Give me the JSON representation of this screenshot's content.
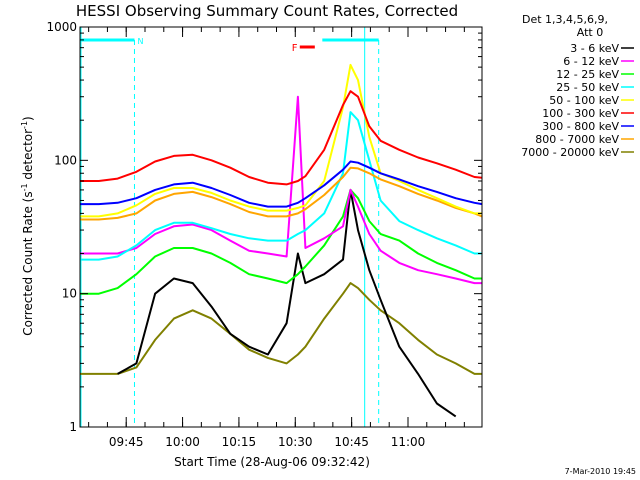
{
  "chart_data": {
    "type": "line",
    "title": "HESSI Observing Summary Count Rates, Corrected",
    "xlabel": "Start Time (28-Aug-06 09:32:42)",
    "ylabel": "Corrected Count Rate (s",
    "ylabel_sup1": "-1",
    "ylabel_mid": " detector",
    "ylabel_sup2": "-1",
    "ylabel_end": ")",
    "yscale": "log",
    "ylim": [
      1,
      1000
    ],
    "xlim_minutes": [
      0,
      107
    ],
    "x_start": "09:32:42",
    "xticks": [
      {
        "label": "09:45",
        "min": 12.3
      },
      {
        "label": "10:00",
        "min": 27.3
      },
      {
        "label": "10:15",
        "min": 42.3
      },
      {
        "label": "10:30",
        "min": 57.3
      },
      {
        "label": "10:45",
        "min": 72.3
      },
      {
        "label": "11:00",
        "min": 87.3
      }
    ],
    "yticks": [
      {
        "label": "1",
        "value": 1
      },
      {
        "label": "10",
        "value": 10
      },
      {
        "label": "100",
        "value": 100
      },
      {
        "label": "1000",
        "value": 1000
      }
    ],
    "legend_title_1": "Det 1,3,4,5,6,9,",
    "legend_title_2": "Att 0",
    "x": [
      0,
      5,
      10,
      15,
      20,
      25,
      30,
      35,
      40,
      45,
      50,
      55,
      58,
      60,
      65,
      70,
      72,
      74,
      77,
      80,
      85,
      90,
      95,
      100,
      105,
      107
    ],
    "series": [
      {
        "name": "3 - 6 keV",
        "color": "#000000",
        "values": [
          null,
          null,
          2.5,
          3.0,
          10,
          13,
          12,
          8,
          5,
          4,
          3.5,
          6,
          20,
          12,
          14,
          18,
          60,
          30,
          15,
          9,
          4,
          2.5,
          1.5,
          1.2,
          null,
          null
        ]
      },
      {
        "name": "6 - 12 keV",
        "color": "#ff00ff",
        "values": [
          20,
          20,
          20,
          22,
          28,
          32,
          33,
          30,
          25,
          21,
          20,
          19,
          300,
          22,
          26,
          32,
          60,
          45,
          28,
          21,
          17,
          15,
          14,
          13,
          12,
          12
        ]
      },
      {
        "name": "12 - 25 keV",
        "color": "#00ff00",
        "values": [
          10,
          10,
          11,
          14,
          19,
          22,
          22,
          20,
          17,
          14,
          13,
          12,
          14,
          16,
          23,
          38,
          60,
          52,
          35,
          28,
          25,
          20,
          17,
          15,
          13,
          13
        ]
      },
      {
        "name": "25 - 50 keV",
        "color": "#00ffff",
        "values": [
          18,
          18,
          19,
          23,
          30,
          34,
          34,
          31,
          28,
          26,
          25,
          25,
          28,
          30,
          40,
          80,
          230,
          200,
          100,
          50,
          35,
          30,
          26,
          23,
          20,
          20
        ]
      },
      {
        "name": "50 - 100 keV",
        "color": "#ffff00",
        "values": [
          38,
          38,
          40,
          46,
          56,
          62,
          62,
          57,
          50,
          45,
          42,
          42,
          44,
          46,
          70,
          250,
          520,
          400,
          150,
          80,
          70,
          60,
          52,
          45,
          40,
          40
        ]
      },
      {
        "name": "100 - 300 keV",
        "color": "#ff0000",
        "values": [
          70,
          70,
          73,
          82,
          98,
          108,
          110,
          100,
          88,
          75,
          68,
          66,
          70,
          76,
          120,
          260,
          330,
          300,
          180,
          140,
          120,
          105,
          95,
          85,
          75,
          74
        ]
      },
      {
        "name": "300 - 800 keV",
        "color": "#0000ff",
        "values": [
          47,
          47,
          48,
          52,
          60,
          66,
          68,
          62,
          55,
          48,
          45,
          45,
          48,
          52,
          65,
          85,
          98,
          96,
          88,
          80,
          72,
          64,
          58,
          52,
          48,
          47
        ]
      },
      {
        "name": "800 - 7000 keV",
        "color": "#ffa500",
        "values": [
          36,
          36,
          37,
          40,
          50,
          56,
          58,
          53,
          47,
          41,
          38,
          38,
          40,
          43,
          55,
          75,
          88,
          87,
          80,
          72,
          64,
          56,
          50,
          44,
          40,
          38
        ]
      },
      {
        "name": "7000 - 20000 keV",
        "color": "#808000",
        "values": [
          2.5,
          2.5,
          2.5,
          2.8,
          4.5,
          6.5,
          7.5,
          6.5,
          5,
          3.8,
          3.3,
          3.0,
          3.5,
          4.0,
          6.5,
          10,
          12,
          11,
          9,
          7.5,
          6,
          4.5,
          3.5,
          3.0,
          2.5,
          2.5
        ]
      }
    ],
    "overlays": {
      "night_bars": [
        {
          "start_min": 0,
          "end_min": 14.5,
          "label": "N"
        },
        {
          "start_min": 64.5,
          "end_min": 79.5,
          "label": ""
        }
      ],
      "flare_marker": {
        "label": "F",
        "start_min": 58.5,
        "end_min": 62.5
      },
      "saa_lines_min": [
        14.5,
        79.5
      ]
    },
    "grid": false,
    "legend_placement": "right"
  },
  "footer": {
    "timestamp": "7-Mar-2010 19:45"
  }
}
